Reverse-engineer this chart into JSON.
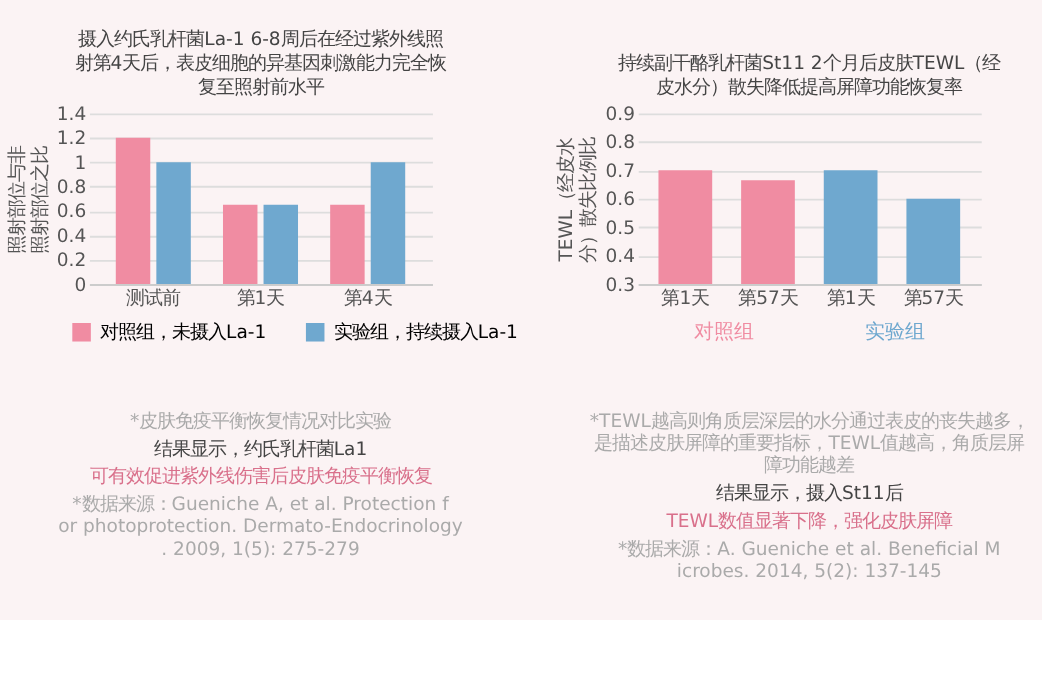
{
  "chart_data": [
    {
      "type": "bar",
      "title": "摄入约氏乳杆菌La-1 6-8周后在经过紫外线照射第4天后，表皮细胞的异基因刺激能力完全恢复至照射前水平",
      "ylabel": "照射部位与非照射部位之比",
      "categories": [
        "测试前",
        "第1天",
        "第4天"
      ],
      "series": [
        {
          "name": "对照组，未摄入La-1",
          "color": "#f08ca2",
          "values": [
            1.2,
            0.65,
            0.65
          ]
        },
        {
          "name": "实验组，持续摄入La-1",
          "color": "#6fa8cf",
          "values": [
            1.0,
            0.65,
            1.0
          ]
        }
      ],
      "ylim": [
        0,
        1.4
      ],
      "yticks": [
        0,
        0.2,
        0.4,
        0.6,
        0.8,
        1,
        1.2,
        1.4
      ],
      "grid": "y",
      "legend": "bottom",
      "annotations": [
        "*皮肤免疫平衡恢复情况对比实验",
        "结果显示，约氏乳杆菌La1",
        "可有效促进紫外线伤害后皮肤免疫平衡恢复",
        "*数据来源：Gueniche A, et al. Protection for photoprotection. Dermato-Endocrinology. 2009, 1(5): 275-279"
      ]
    },
    {
      "type": "bar",
      "title": "持续副干酪乳杆菌St11 2个月后皮肤TEWL（经皮水分）散失降低提高屏障功能恢复率",
      "ylabel": "TEWL（经皮水分）散失比例比",
      "categories": [
        "第1天",
        "第57天",
        "第1天",
        "第57天"
      ],
      "series": [
        {
          "name": "对照组",
          "color": "#f08ca2",
          "values": [
            0.7,
            0.665,
            null,
            null
          ]
        },
        {
          "name": "实验组",
          "color": "#6fa8cf",
          "values": [
            null,
            null,
            0.7,
            0.6
          ]
        }
      ],
      "ylim": [
        0.3,
        0.9
      ],
      "yticks": [
        0.3,
        0.4,
        0.5,
        0.6,
        0.7,
        0.8,
        0.9
      ],
      "grid": "y",
      "legend": false,
      "annotations": [
        "*TEWL越高则角质层深层的水分通过表皮的丧失越多，是描述皮肤屏障的重要指标，TEWL值越高，角质层屏障功能越差",
        "结果显示，摄入St11后",
        "TEWL数值显著下降，强化皮肤屏障",
        "*数据来源：A. Gueniche et al. Beneficial Microbes. 2014, 5(2): 137-145"
      ]
    }
  ]
}
